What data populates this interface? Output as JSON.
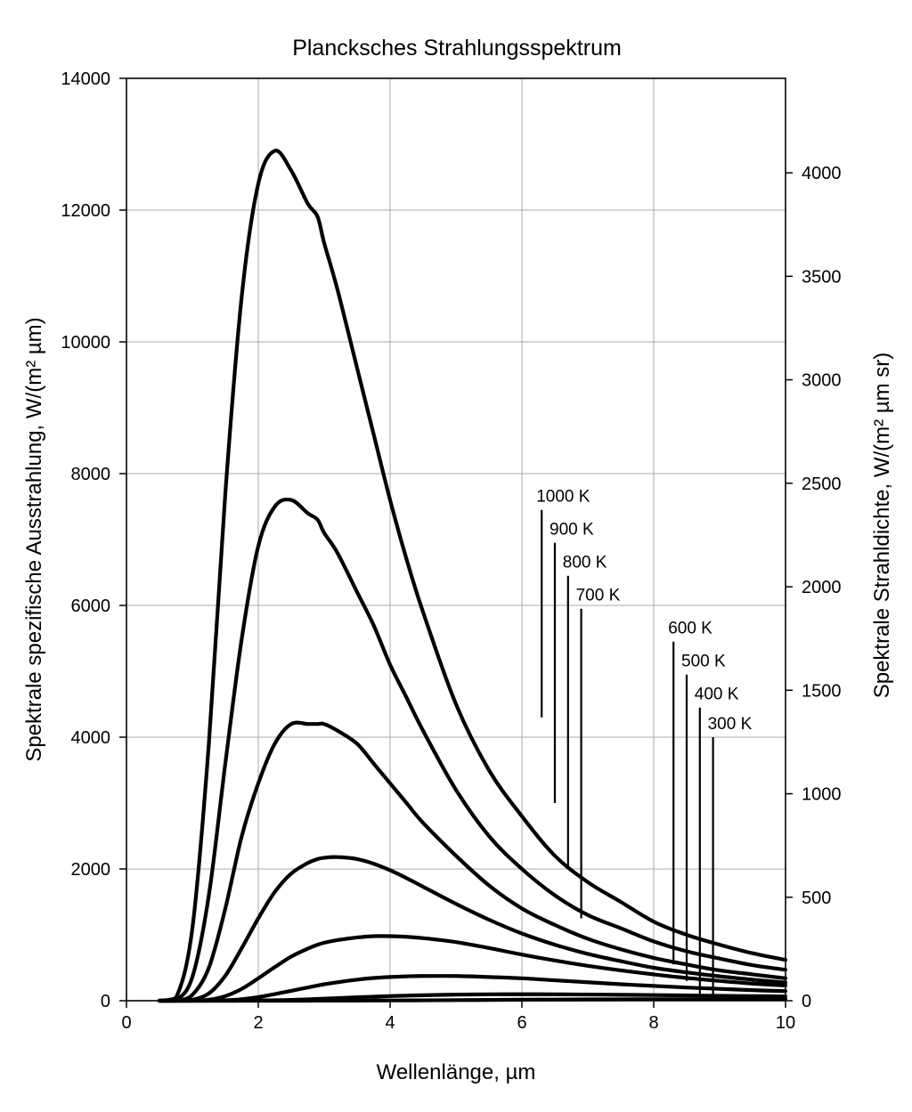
{
  "chart_data": {
    "type": "line",
    "title": "Plancksches Strahlungsspektrum",
    "xlabel": "Wellenlänge, µm",
    "ylabel": "Spektrale spezifische Ausstrahlung, W/(m² µm)",
    "y2label": "Spektrale Strahldichte, W/(m² µm sr)",
    "xlim": [
      0,
      10
    ],
    "ylim": [
      0,
      14000
    ],
    "y2lim": [
      0,
      4456.3
    ],
    "xticks": [
      "0",
      "2",
      "4",
      "6",
      "8",
      "10"
    ],
    "yticks": [
      "0",
      "2000",
      "4000",
      "6000",
      "8000",
      "10000",
      "12000",
      "14000"
    ],
    "y2ticks": [
      "0",
      "500",
      "1000",
      "1500",
      "2000",
      "2500",
      "3000",
      "3500",
      "4000"
    ],
    "grid": true,
    "legend": "none",
    "x": [
      0.5,
      0.75,
      1.0,
      1.25,
      1.5,
      1.75,
      2.0,
      2.25,
      2.5,
      2.75,
      2.9,
      3.0,
      3.2,
      3.5,
      3.75,
      4.0,
      4.25,
      4.5,
      5.0,
      5.5,
      6.0,
      6.5,
      7.0,
      7.5,
      8.0,
      8.5,
      9.0,
      9.5,
      10.0
    ],
    "series": [
      {
        "name": "1000 K",
        "values": [
          0,
          40,
          1100,
          3900,
          7700,
          10700,
          12400,
          12900,
          12600,
          12100,
          11900,
          11500,
          10800,
          9600,
          8600,
          7600,
          6700,
          5900,
          4500,
          3500,
          2800,
          2200,
          1800,
          1500,
          1200,
          1000,
          850,
          720,
          620
        ]
      },
      {
        "name": "900 K",
        "values": [
          0,
          10,
          360,
          1600,
          3600,
          5500,
          6900,
          7500,
          7600,
          7400,
          7300,
          7100,
          6800,
          6200,
          5700,
          5100,
          4600,
          4100,
          3200,
          2500,
          2000,
          1600,
          1300,
          1100,
          900,
          750,
          640,
          540,
          470
        ]
      },
      {
        "name": "800 K",
        "values": [
          0,
          2,
          90,
          500,
          1400,
          2500,
          3300,
          3900,
          4200,
          4200,
          4200,
          4200,
          4100,
          3900,
          3600,
          3300,
          3000,
          2700,
          2200,
          1750,
          1400,
          1150,
          940,
          780,
          650,
          550,
          460,
          400,
          340
        ]
      },
      {
        "name": "700 K",
        "values": [
          0,
          0,
          15,
          110,
          380,
          800,
          1250,
          1650,
          1930,
          2090,
          2150,
          2170,
          2180,
          2150,
          2080,
          1980,
          1860,
          1730,
          1470,
          1230,
          1020,
          850,
          710,
          600,
          500,
          430,
          370,
          320,
          275
        ]
      },
      {
        "name": "600 K",
        "values": [
          0,
          0,
          1,
          15,
          70,
          180,
          340,
          510,
          670,
          790,
          850,
          880,
          920,
          960,
          980,
          980,
          970,
          950,
          890,
          800,
          700,
          610,
          530,
          460,
          400,
          345,
          300,
          260,
          230
        ]
      },
      {
        "name": "500 K",
        "values": [
          0,
          0,
          0,
          1,
          6,
          22,
          54,
          100,
          150,
          200,
          230,
          250,
          280,
          320,
          345,
          360,
          370,
          375,
          375,
          360,
          340,
          310,
          280,
          250,
          225,
          200,
          180,
          160,
          145
        ]
      },
      {
        "name": "400 K",
        "values": [
          0,
          0,
          0,
          0,
          0,
          1,
          3,
          7,
          13,
          21,
          27,
          31,
          39,
          52,
          61,
          70,
          77,
          83,
          92,
          97,
          98,
          97,
          94,
          90,
          85,
          80,
          74,
          69,
          64
        ]
      },
      {
        "name": "300 K",
        "values": [
          0,
          0,
          0,
          0,
          0,
          0,
          0,
          0,
          0,
          0,
          1,
          1,
          1,
          2,
          3,
          4,
          5,
          6,
          9,
          12,
          15,
          18,
          20,
          21,
          22,
          23,
          23,
          23,
          23
        ]
      }
    ],
    "annotations": [
      {
        "label": "1000 K",
        "x": 6.3,
        "y_top": 7450,
        "y_bottom": 4300
      },
      {
        "label": "900 K",
        "x": 6.5,
        "y_top": 6950,
        "y_bottom": 3000
      },
      {
        "label": "800 K",
        "x": 6.7,
        "y_top": 6450,
        "y_bottom": 2000
      },
      {
        "label": "700 K",
        "x": 6.9,
        "y_top": 5950,
        "y_bottom": 1250
      },
      {
        "label": "600 K",
        "x": 8.3,
        "y_top": 5450,
        "y_bottom": 550
      },
      {
        "label": "500 K",
        "x": 8.5,
        "y_top": 4950,
        "y_bottom": 300
      },
      {
        "label": "400 K",
        "x": 8.7,
        "y_top": 4450,
        "y_bottom": 100
      },
      {
        "label": "300 K",
        "x": 8.9,
        "y_top": 4000,
        "y_bottom": 20
      }
    ]
  }
}
